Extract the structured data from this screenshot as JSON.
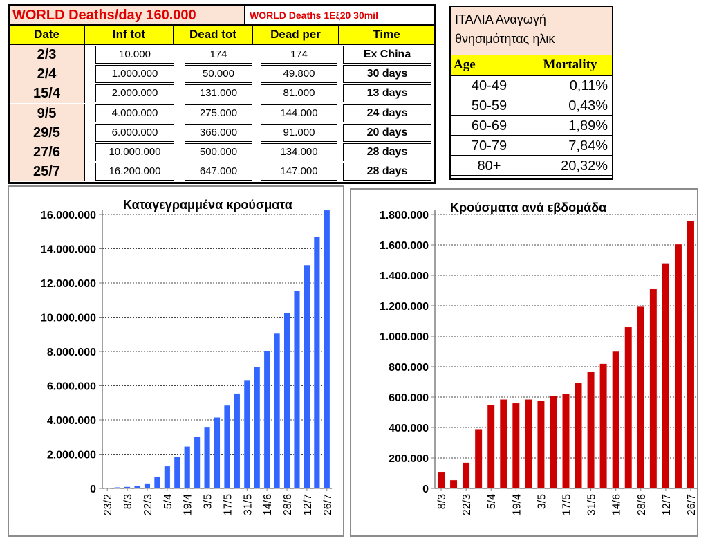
{
  "world_table": {
    "header_left": "WORLD  Deaths/day 160.000",
    "header_right": "WORLD Deaths 1Eξ20  30mil",
    "columns": [
      "Date",
      "Inf tot",
      "Dead tot",
      "Dead per",
      "Time"
    ],
    "rows": [
      {
        "date": "2/3",
        "inf_tot": "10.000",
        "dead_tot": "174",
        "dead_per": "174",
        "time": "Ex China"
      },
      {
        "date": "2/4",
        "inf_tot": "1.000.000",
        "dead_tot": "50.000",
        "dead_per": "49.800",
        "time": "30 days"
      },
      {
        "date": "15/4",
        "inf_tot": "2.000.000",
        "dead_tot": "131.000",
        "dead_per": "81.000",
        "time": "13 days"
      },
      {
        "date": "9/5",
        "inf_tot": "4.000.000",
        "dead_tot": "275.000",
        "dead_per": "144.000",
        "time": "24 days"
      },
      {
        "date": "29/5",
        "inf_tot": "6.000.000",
        "dead_tot": "366.000",
        "dead_per": "91.000",
        "time": "20 days"
      },
      {
        "date": "27/6",
        "inf_tot": "10.000.000",
        "dead_tot": "500.000",
        "dead_per": "134.000",
        "time": "28 days"
      },
      {
        "date": "25/7",
        "inf_tot": "16.200.000",
        "dead_tot": "647.000",
        "dead_per": "147.000",
        "time": "28 days"
      }
    ]
  },
  "italy_table": {
    "title_line1": "ΙΤΑΛΙΑ Αναγωγή",
    "title_line2": "θνησιμότητας ηλικ",
    "col_age": "Age",
    "col_mortality": "Mortality",
    "rows": [
      {
        "age": "40-49",
        "mortality": "0,11%"
      },
      {
        "age": "50-59",
        "mortality": "0,43%"
      },
      {
        "age": "60-69",
        "mortality": "1,89%"
      },
      {
        "age": "70-79",
        "mortality": "7,84%"
      },
      {
        "age": "80+",
        "mortality": "20,32%"
      }
    ]
  },
  "colors": {
    "table_header_yellow": "#ffff00",
    "table_peach": "#fbe4d5",
    "header_red_text": "#e00000",
    "bar_blue": "#3366ff",
    "bar_red": "#cc0000"
  },
  "chart_data": [
    {
      "type": "bar",
      "title": "Καταγεγραμμένα κρούσματα",
      "xlabel": "",
      "ylabel": "",
      "ylim": [
        0,
        16000000
      ],
      "yticks": [
        0,
        2000000,
        4000000,
        6000000,
        8000000,
        10000000,
        12000000,
        14000000,
        16000000
      ],
      "ytick_labels": [
        "0",
        "2.000.000",
        "4.000.000",
        "6.000.000",
        "8.000.000",
        "10.000.000",
        "12.000.000",
        "14.000.000",
        "16.000.000"
      ],
      "xtick_labels": [
        "23/2",
        "8/3",
        "22/3",
        "5/4",
        "19/4",
        "3/5",
        "17/5",
        "31/5",
        "14/6",
        "28/6",
        "12/7",
        "26/7"
      ],
      "grid": true,
      "values": [
        20000,
        70000,
        100000,
        170000,
        300000,
        700000,
        1300000,
        1850000,
        2450000,
        3000000,
        3600000,
        4150000,
        4850000,
        5550000,
        6300000,
        7100000,
        8050000,
        9050000,
        10250000,
        11550000,
        13050000,
        14700000,
        16250000
      ]
    },
    {
      "type": "bar",
      "title": "Κρούσματα ανά εβδομάδα",
      "xlabel": "",
      "ylabel": "",
      "ylim": [
        0,
        1800000
      ],
      "yticks": [
        0,
        200000,
        400000,
        600000,
        800000,
        1000000,
        1200000,
        1400000,
        1600000,
        1800000
      ],
      "ytick_labels": [
        "0",
        "200.000",
        "400.000",
        "600.000",
        "800.000",
        "1.000.000",
        "1.200.000",
        "1.400.000",
        "1.600.000",
        "1.800.000"
      ],
      "xtick_labels": [
        "8/3",
        "22/3",
        "5/4",
        "19/4",
        "3/5",
        "17/5",
        "31/5",
        "14/6",
        "28/6",
        "12/7",
        "26/7"
      ],
      "grid": true,
      "values": [
        110000,
        55000,
        170000,
        390000,
        550000,
        585000,
        560000,
        585000,
        575000,
        610000,
        620000,
        695000,
        765000,
        820000,
        900000,
        1060000,
        1195000,
        1310000,
        1480000,
        1605000,
        1760000
      ]
    }
  ]
}
